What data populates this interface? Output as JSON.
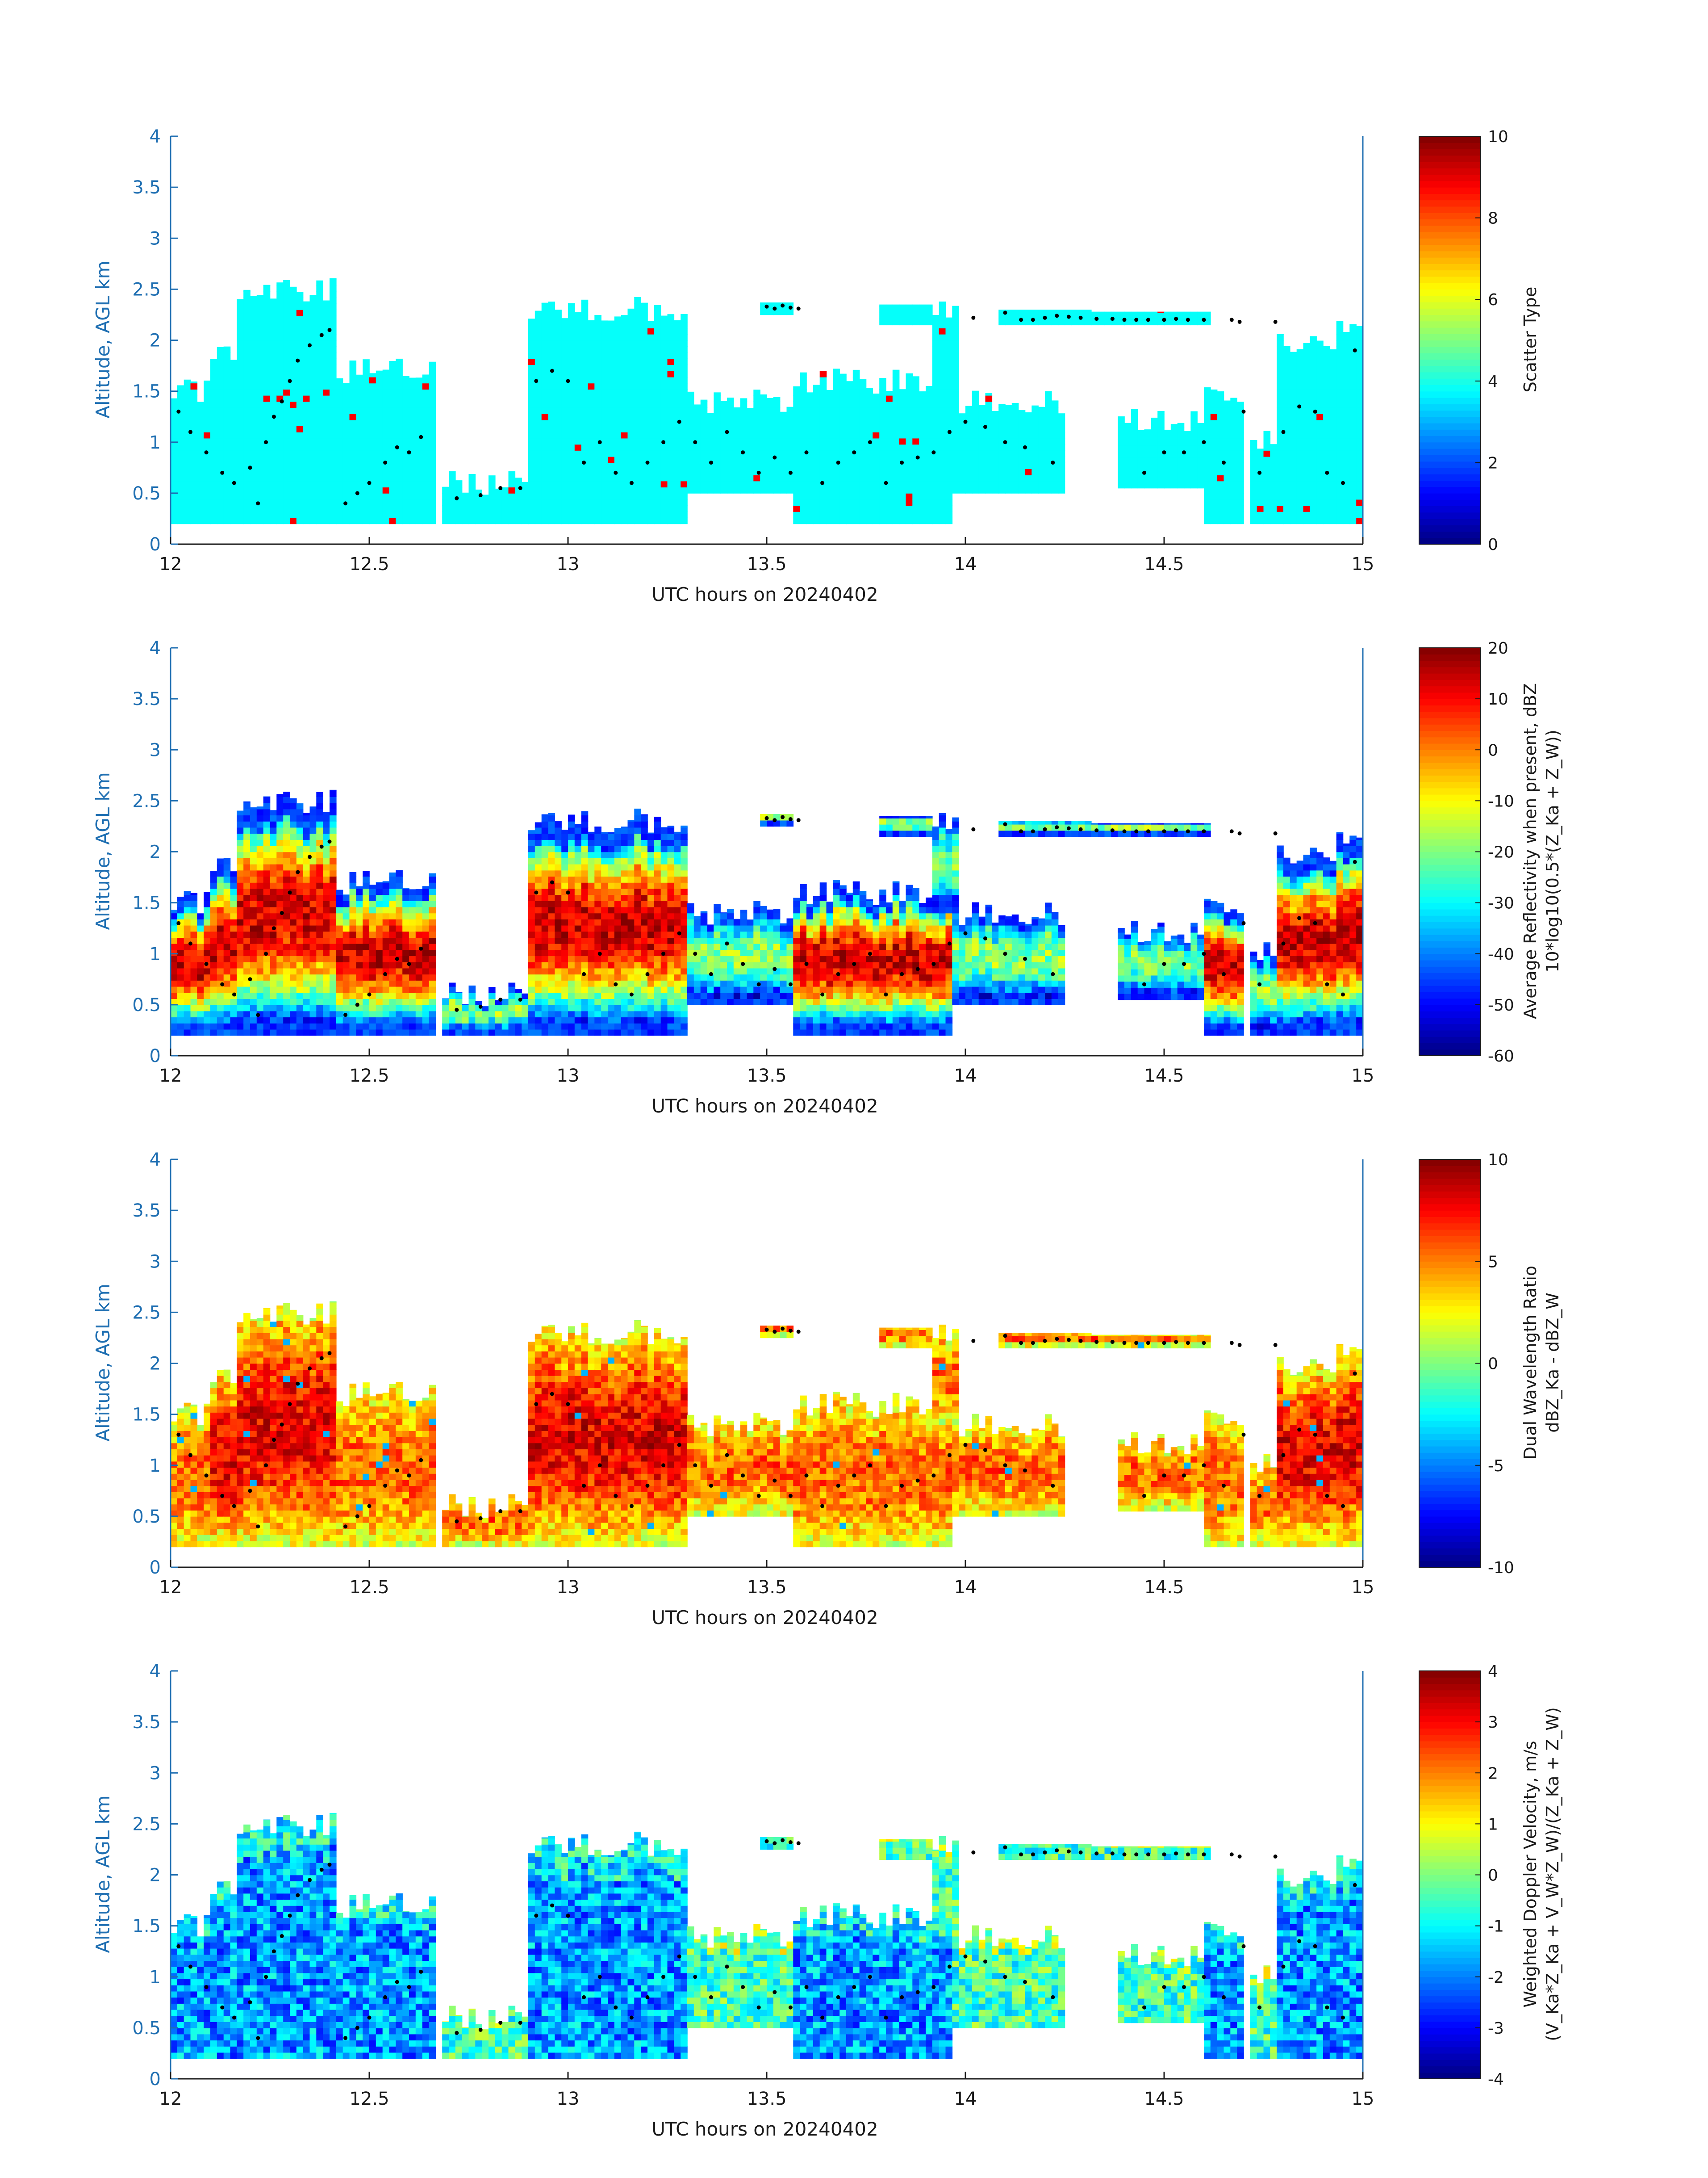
{
  "figure": {
    "date": "20240402"
  },
  "chart_data": [
    {
      "type": "heatmap",
      "title": "",
      "xlabel": "UTC hours on 20240402",
      "ylabel": "Altitude, AGL km",
      "xlim": [
        12,
        15
      ],
      "ylim": [
        0,
        4
      ],
      "xticks": [
        "12",
        "12.5",
        "13",
        "13.5",
        "14",
        "14.5",
        "15"
      ],
      "yticks": [
        "0",
        "0.5",
        "1",
        "1.5",
        "2",
        "2.5",
        "3",
        "3.5",
        "4"
      ],
      "colorbar": {
        "label_lines": [
          "Scatter Type"
        ],
        "min": 0,
        "max": 10,
        "ticks": [
          "0",
          "2",
          "4",
          "6",
          "8",
          "10"
        ],
        "colormap": "jet"
      },
      "field": "scatter_type",
      "dominant_value": 3.8,
      "outlier_value": 8.8
    },
    {
      "type": "heatmap",
      "title": "",
      "xlabel": "UTC hours on 20240402",
      "ylabel": "Altitude, AGL km",
      "xlim": [
        12,
        15
      ],
      "ylim": [
        0,
        4
      ],
      "xticks": [
        "12",
        "12.5",
        "13",
        "13.5",
        "14",
        "14.5",
        "15"
      ],
      "yticks": [
        "0",
        "0.5",
        "1",
        "1.5",
        "2",
        "2.5",
        "3",
        "3.5",
        "4"
      ],
      "colorbar": {
        "label_lines": [
          "Average Reflectivity when present, dBZ",
          "10*log10(0.5*(Z_Ka + Z_W))"
        ],
        "min": -60,
        "max": 20,
        "ticks": [
          "-60",
          "-50",
          "-40",
          "-30",
          "-20",
          "-10",
          "0",
          "10",
          "20"
        ],
        "colormap": "jet"
      },
      "field": "reflectivity"
    },
    {
      "type": "heatmap",
      "title": "",
      "xlabel": "UTC hours on 20240402",
      "ylabel": "Altitude, AGL km",
      "xlim": [
        12,
        15
      ],
      "ylim": [
        0,
        4
      ],
      "xticks": [
        "12",
        "12.5",
        "13",
        "13.5",
        "14",
        "14.5",
        "15"
      ],
      "yticks": [
        "0",
        "0.5",
        "1",
        "1.5",
        "2",
        "2.5",
        "3",
        "3.5",
        "4"
      ],
      "colorbar": {
        "label_lines": [
          "Dual Wavelength Ratio",
          "dBZ_Ka - dBZ_W"
        ],
        "min": -10,
        "max": 10,
        "ticks": [
          "-10",
          "-5",
          "0",
          "5",
          "10"
        ],
        "colormap": "jet"
      },
      "field": "dwr"
    },
    {
      "type": "heatmap",
      "title": "",
      "xlabel": "UTC hours on 20240402",
      "ylabel": "Altitude, AGL km",
      "xlim": [
        12,
        15
      ],
      "ylim": [
        0,
        4
      ],
      "xticks": [
        "12",
        "12.5",
        "13",
        "13.5",
        "14",
        "14.5",
        "15"
      ],
      "yticks": [
        "0",
        "0.5",
        "1",
        "1.5",
        "2",
        "2.5",
        "3",
        "3.5",
        "4"
      ],
      "colorbar": {
        "label_lines": [
          "Weighted Doppler Velocity, m/s",
          "(V_Ka*Z_Ka + V_W*Z_W)/(Z_Ka + Z_W)"
        ],
        "min": -4,
        "max": 4,
        "ticks": [
          "-4",
          "-3",
          "-2",
          "-1",
          "0",
          "1",
          "2",
          "3",
          "4"
        ],
        "colormap": "jet"
      },
      "field": "velocity"
    }
  ],
  "cloud_regions": [
    {
      "t0": 12.0,
      "t1": 12.1,
      "base": 0.2,
      "top": 1.5
    },
    {
      "t0": 12.1,
      "t1": 12.17,
      "base": 0.2,
      "top": 1.9
    },
    {
      "t0": 12.17,
      "t1": 12.42,
      "base": 0.2,
      "top": 2.5
    },
    {
      "t0": 12.42,
      "t1": 12.66,
      "base": 0.2,
      "top": 1.7
    },
    {
      "t0": 12.69,
      "t1": 12.9,
      "base": 0.2,
      "top": 0.6
    },
    {
      "t0": 12.9,
      "t1": 13.3,
      "base": 0.2,
      "top": 2.3
    },
    {
      "t0": 13.3,
      "t1": 13.56,
      "base": 0.5,
      "top": 1.4
    },
    {
      "t0": 13.56,
      "t1": 13.76,
      "base": 0.2,
      "top": 1.6
    },
    {
      "t0": 13.76,
      "t1": 13.97,
      "base": 0.2,
      "top": 1.6
    },
    {
      "t0": 13.97,
      "t1": 14.25,
      "base": 0.5,
      "top": 1.4
    },
    {
      "t0": 14.38,
      "t1": 14.6,
      "base": 0.55,
      "top": 1.2
    },
    {
      "t0": 14.6,
      "t1": 14.7,
      "base": 0.2,
      "top": 1.5
    },
    {
      "t0": 14.72,
      "t1": 14.78,
      "base": 0.2,
      "top": 1.0
    },
    {
      "t0": 14.78,
      "t1": 14.93,
      "base": 0.2,
      "top": 2.0
    },
    {
      "t0": 14.93,
      "t1": 15.0,
      "base": 0.2,
      "top": 2.2
    },
    {
      "t0": 13.48,
      "t1": 13.57,
      "base": 2.25,
      "top": 2.37
    },
    {
      "t0": 13.78,
      "t1": 13.92,
      "base": 2.15,
      "top": 2.35
    },
    {
      "t0": 13.92,
      "t1": 13.98,
      "base": 1.4,
      "top": 2.3
    },
    {
      "t0": 14.08,
      "t1": 14.32,
      "base": 2.15,
      "top": 2.3
    },
    {
      "t0": 14.32,
      "t1": 14.62,
      "base": 2.15,
      "top": 2.28
    }
  ],
  "cloud_top_markers": [
    [
      12.02,
      1.3
    ],
    [
      12.05,
      1.1
    ],
    [
      12.09,
      0.9
    ],
    [
      12.13,
      0.7
    ],
    [
      12.16,
      0.6
    ],
    [
      12.2,
      0.75
    ],
    [
      12.22,
      0.4
    ],
    [
      12.24,
      1.0
    ],
    [
      12.26,
      1.25
    ],
    [
      12.28,
      1.4
    ],
    [
      12.3,
      1.6
    ],
    [
      12.32,
      1.8
    ],
    [
      12.35,
      1.95
    ],
    [
      12.38,
      2.05
    ],
    [
      12.4,
      2.1
    ],
    [
      12.44,
      0.4
    ],
    [
      12.47,
      0.5
    ],
    [
      12.5,
      0.6
    ],
    [
      12.54,
      0.8
    ],
    [
      12.57,
      0.95
    ],
    [
      12.6,
      0.9
    ],
    [
      12.63,
      1.05
    ],
    [
      12.72,
      0.45
    ],
    [
      12.78,
      0.48
    ],
    [
      12.83,
      0.55
    ],
    [
      12.88,
      0.55
    ],
    [
      12.92,
      1.6
    ],
    [
      12.96,
      1.7
    ],
    [
      13.0,
      1.6
    ],
    [
      13.04,
      0.8
    ],
    [
      13.08,
      1.0
    ],
    [
      13.12,
      0.7
    ],
    [
      13.16,
      0.6
    ],
    [
      13.2,
      0.8
    ],
    [
      13.24,
      1.0
    ],
    [
      13.28,
      1.2
    ],
    [
      13.32,
      1.0
    ],
    [
      13.36,
      0.8
    ],
    [
      13.4,
      1.1
    ],
    [
      13.44,
      0.9
    ],
    [
      13.48,
      0.7
    ],
    [
      13.52,
      0.85
    ],
    [
      13.56,
      0.7
    ],
    [
      13.6,
      0.9
    ],
    [
      13.64,
      0.6
    ],
    [
      13.68,
      0.8
    ],
    [
      13.72,
      0.9
    ],
    [
      13.76,
      1.0
    ],
    [
      13.8,
      0.6
    ],
    [
      13.84,
      0.8
    ],
    [
      13.88,
      0.85
    ],
    [
      13.92,
      0.9
    ],
    [
      13.96,
      1.1
    ],
    [
      14.0,
      1.2
    ],
    [
      14.05,
      1.15
    ],
    [
      14.1,
      1.0
    ],
    [
      14.15,
      0.95
    ],
    [
      14.22,
      0.8
    ],
    [
      14.45,
      0.7
    ],
    [
      14.5,
      0.9
    ],
    [
      14.55,
      0.9
    ],
    [
      14.6,
      1.0
    ],
    [
      14.65,
      0.8
    ],
    [
      14.7,
      1.3
    ],
    [
      14.74,
      0.7
    ],
    [
      14.8,
      1.1
    ],
    [
      14.84,
      1.35
    ],
    [
      14.88,
      1.3
    ],
    [
      14.91,
      0.7
    ],
    [
      14.95,
      0.6
    ],
    [
      14.98,
      1.9
    ],
    [
      13.5,
      2.33
    ],
    [
      13.52,
      2.31
    ],
    [
      13.54,
      2.34
    ],
    [
      13.56,
      2.32
    ],
    [
      13.58,
      2.31
    ],
    [
      14.02,
      2.22
    ],
    [
      14.1,
      2.27
    ],
    [
      14.14,
      2.2
    ],
    [
      14.17,
      2.2
    ],
    [
      14.2,
      2.22
    ],
    [
      14.23,
      2.24
    ],
    [
      14.26,
      2.23
    ],
    [
      14.29,
      2.22
    ],
    [
      14.33,
      2.21
    ],
    [
      14.37,
      2.21
    ],
    [
      14.4,
      2.2
    ],
    [
      14.43,
      2.2
    ],
    [
      14.46,
      2.2
    ],
    [
      14.5,
      2.2
    ],
    [
      14.53,
      2.21
    ],
    [
      14.56,
      2.2
    ],
    [
      14.6,
      2.2
    ],
    [
      14.67,
      2.2
    ],
    [
      14.69,
      2.18
    ],
    [
      14.78,
      2.18
    ]
  ]
}
